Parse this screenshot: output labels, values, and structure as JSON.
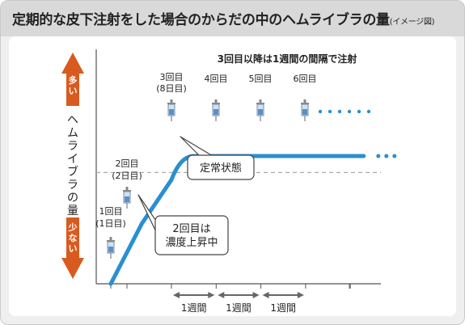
{
  "title": "定期的な皮下注射をした場合のからだの中のヘムライブラの量",
  "title_note": "(イメージ図)",
  "chart_data": {
    "type": "line",
    "title": "定期的な皮下注射をした場合のからだの中のヘムライブラの量",
    "subtitle": "(イメージ図)",
    "ylabel": "ヘムライブラの量",
    "y_high_label": "多い",
    "y_low_label": "少ない",
    "xlabel": "",
    "xlim": [
      0,
      6
    ],
    "ylim": [
      0,
      1
    ],
    "x_ticks": [
      0,
      0.25,
      1,
      2,
      3,
      4,
      5
    ],
    "threshold_y": 0.6,
    "series": [
      {
        "values_x": [
          0,
          0.5,
          1,
          1.25,
          1.5,
          2,
          3,
          4,
          5.3
        ],
        "values_y": [
          0,
          0.32,
          0.58,
          0.67,
          0.69,
          0.69,
          0.69,
          0.69,
          0.69
        ],
        "continuation_x": [
          5.3,
          5.7
        ],
        "continuation_y": 0.69,
        "color": "#2a8fd0"
      }
    ],
    "injections": [
      {
        "x": 0,
        "label_line1": "1回目",
        "label_line2": "(1日目)"
      },
      {
        "x": 0.25,
        "label_line1": "2回目",
        "label_line2": "(2日目)"
      },
      {
        "x": 1,
        "label_line1": "3回目",
        "label_line2": "(8日目)"
      },
      {
        "x": 2,
        "label_line1": "4回目",
        "label_line2": ""
      },
      {
        "x": 3,
        "label_line1": "5回目",
        "label_line2": ""
      },
      {
        "x": 4,
        "label_line1": "6回目",
        "label_line2": ""
      }
    ],
    "interval_note": "3回目以降は1週間の間隔で注射",
    "intervals": [
      {
        "from": 1,
        "to": 2,
        "label": "1週間"
      },
      {
        "from": 2,
        "to": 3,
        "label": "1週間"
      },
      {
        "from": 3,
        "to": 4,
        "label": "1週間"
      }
    ],
    "callouts": [
      {
        "name": "steady-state",
        "lines": [
          "定常状態"
        ]
      },
      {
        "name": "second-dose",
        "lines": [
          "2回目は",
          "濃度上昇中"
        ]
      }
    ],
    "colors": {
      "curve": "#2a8fd0",
      "arrow": "#d95a1e",
      "dashed": "#aaaaaa",
      "axis": "#555555"
    }
  }
}
